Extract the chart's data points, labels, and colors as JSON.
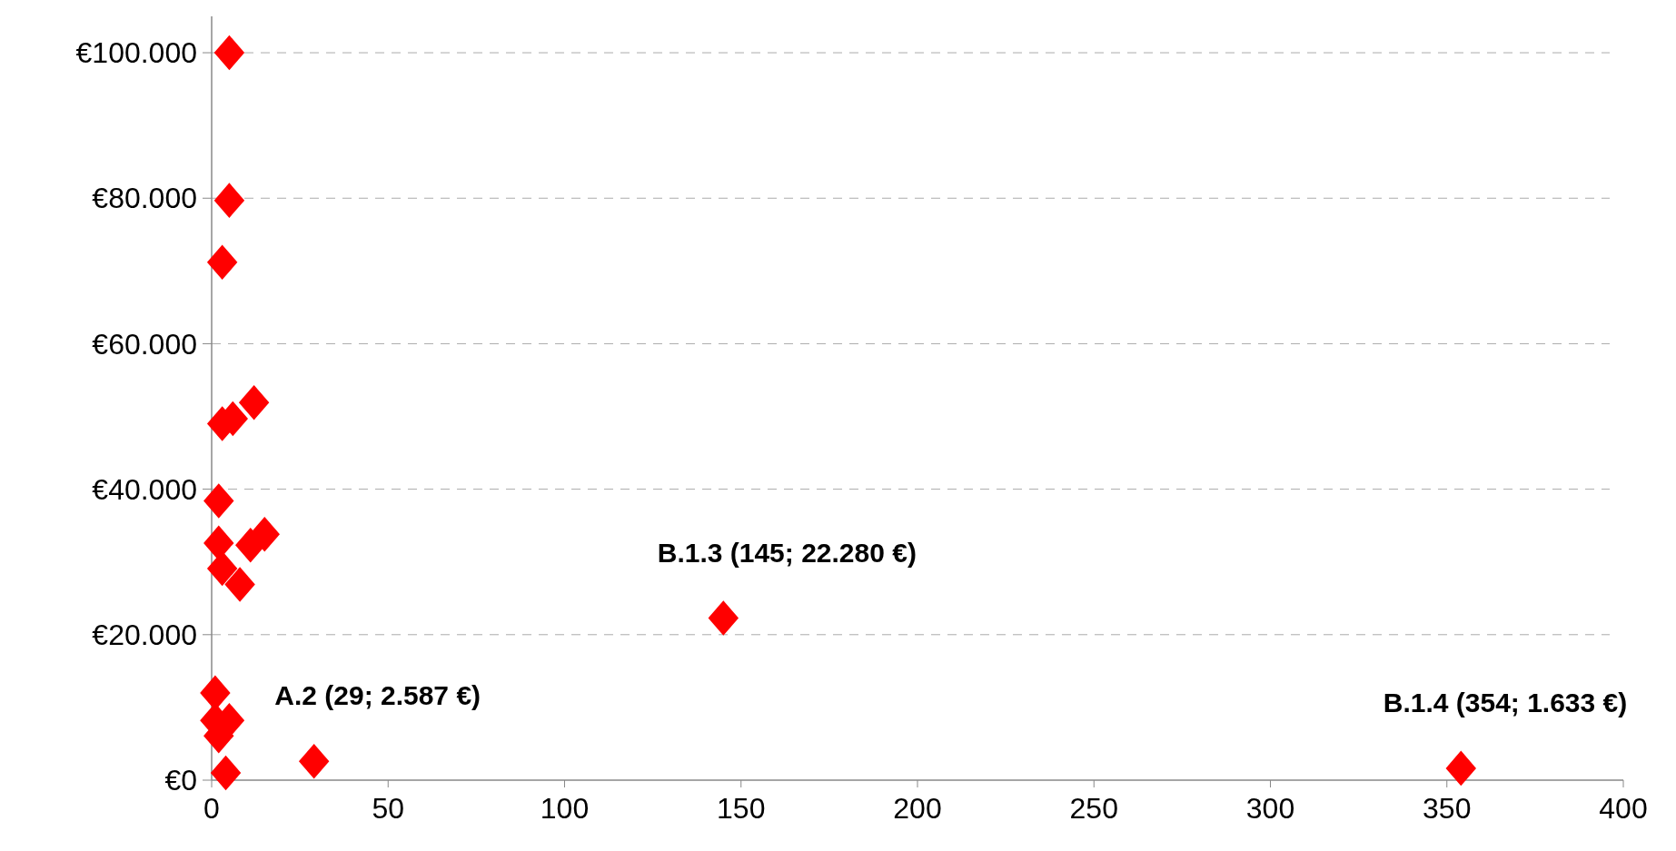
{
  "chart_data": {
    "type": "scatter",
    "marker": "diamond",
    "grid": "y",
    "x": [
      5,
      5,
      3,
      3,
      6,
      12,
      2,
      2,
      15,
      11,
      3,
      8,
      145,
      1,
      1,
      5,
      2,
      4,
      29,
      354
    ],
    "values": [
      100000,
      79700,
      71200,
      49000,
      49700,
      51900,
      38400,
      32600,
      33800,
      32300,
      29100,
      26900,
      22280,
      12000,
      8200,
      8200,
      6100,
      1000,
      2587,
      1633
    ],
    "color": "#ff0000",
    "xlim": [
      0,
      400
    ],
    "xticks": [
      0,
      50,
      100,
      150,
      200,
      250,
      300,
      350,
      400
    ],
    "ylim": [
      0,
      105000
    ],
    "yticks": [
      {
        "value": 0,
        "label": "€0"
      },
      {
        "value": 20000,
        "label": "€20.000"
      },
      {
        "value": 40000,
        "label": "€40.000"
      },
      {
        "value": 60000,
        "label": "€60.000"
      },
      {
        "value": 80000,
        "label": "€80.000"
      },
      {
        "value": 100000,
        "label": "€100.000"
      }
    ],
    "annotations": [
      {
        "text": "A.2 (29; 2.587 €)",
        "x": 29,
        "y": 2587
      },
      {
        "text": "B.1.3 (145; 22.280 €)",
        "x": 145,
        "y": 22280
      },
      {
        "text": "B.1.4 (354; 1.633 €)",
        "x": 354,
        "y": 1633
      }
    ]
  }
}
